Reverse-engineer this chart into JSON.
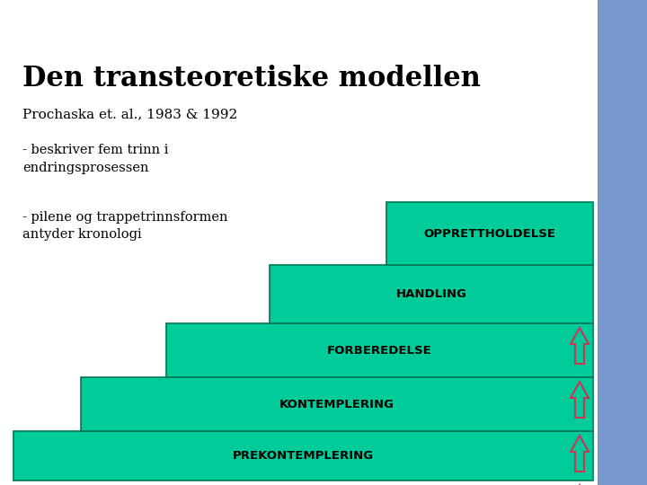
{
  "title": "Den transteoretiske modellen",
  "subtitle": "Prochaska et. al., 1983 & 1992",
  "bullet1": "- beskriver fem trinn i\nendringsprosessen",
  "bullet2": "- pilene og trappetrinnsformen\nantyder kronologi",
  "steps": [
    {
      "label": "PREKONTEMPLERING"
    },
    {
      "label": "KONTEMPLERING"
    },
    {
      "label": "FORBEREDELSE"
    },
    {
      "label": "HANDLING"
    },
    {
      "label": "OPPRETTHOLDELSE"
    }
  ],
  "step_color": "#00CC99",
  "step_edge_color": "#007755",
  "arrow_color": "#CC0044",
  "bg_color": "#FFFFFF",
  "title_color": "#000000",
  "label_color": "#000000",
  "right_bar_color": "#7799CC",
  "fig_width": 7.2,
  "fig_height": 5.4,
  "dpi": 100
}
